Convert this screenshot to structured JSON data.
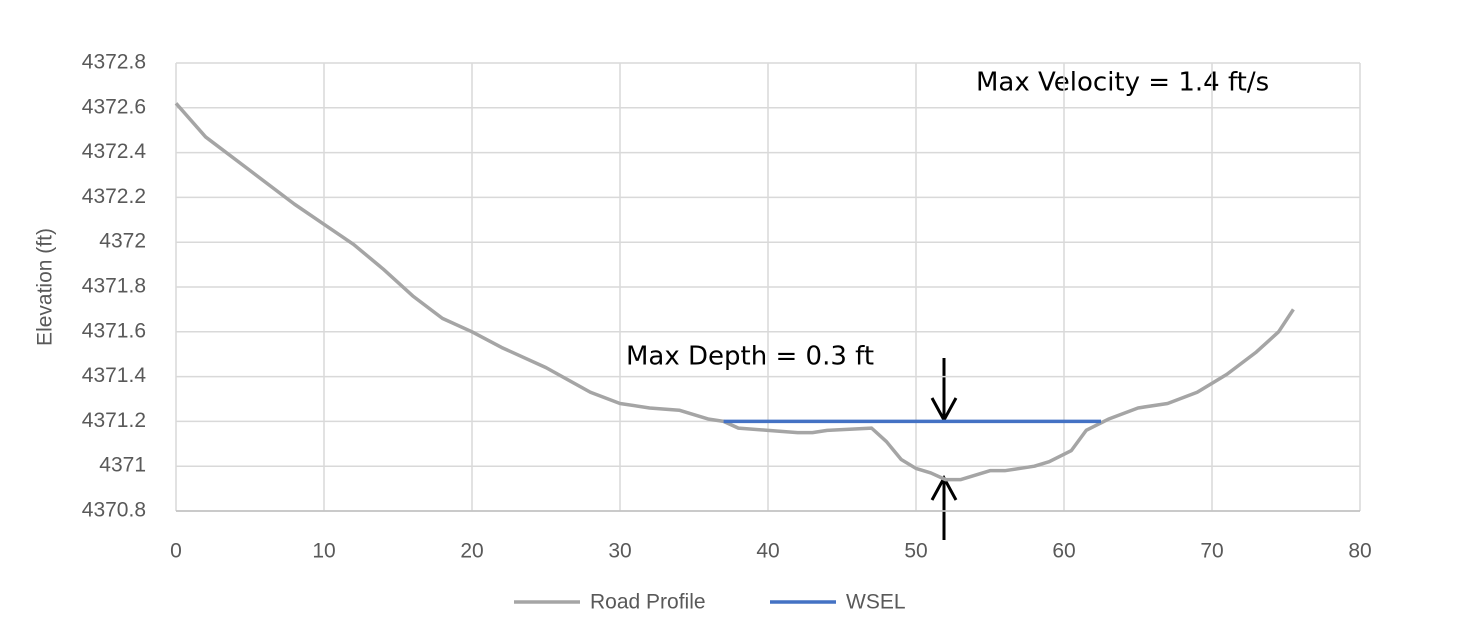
{
  "chart_data": {
    "type": "line",
    "y_label": "Elevation (ft)",
    "annotations": [
      "Max Velocity = 1.4 ft/s",
      "Max Depth = 0.3 ft"
    ],
    "xlim": [
      0,
      80
    ],
    "xticks": [
      0,
      10,
      20,
      30,
      40,
      50,
      60,
      70,
      80
    ],
    "ylim": [
      4370.8,
      4372.8
    ],
    "yticks": [
      4370.8,
      4371,
      4371.2,
      4371.4,
      4371.6,
      4371.8,
      4372,
      4372.2,
      4372.4,
      4372.6,
      4372.8
    ],
    "grid": true,
    "legend": "bottom",
    "series": [
      {
        "name": "Road Profile",
        "color": "#a5a5a5",
        "x": [
          0,
          2,
          5,
          8,
          10,
          12,
          14,
          16,
          18,
          20,
          22,
          25,
          28,
          30,
          32,
          34,
          36,
          37,
          38,
          40,
          42,
          43,
          44,
          47,
          48,
          49,
          50,
          51,
          52,
          53,
          55,
          56,
          58,
          59,
          60.5,
          61.5,
          63,
          65,
          67,
          69,
          71,
          73,
          74.5,
          75.5
        ],
        "values": [
          4372.62,
          4372.47,
          4372.32,
          4372.17,
          4372.08,
          4371.99,
          4371.88,
          4371.76,
          4371.66,
          4371.6,
          4371.53,
          4371.44,
          4371.33,
          4371.28,
          4371.26,
          4371.25,
          4371.21,
          4371.2,
          4371.17,
          4371.16,
          4371.15,
          4371.15,
          4371.16,
          4371.17,
          4371.11,
          4371.03,
          4370.99,
          4370.97,
          4370.94,
          4370.94,
          4370.98,
          4370.98,
          4371.0,
          4371.02,
          4371.07,
          4371.16,
          4371.21,
          4371.26,
          4371.28,
          4371.33,
          4371.41,
          4371.51,
          4371.6,
          4371.7
        ]
      },
      {
        "name": "WSEL",
        "color": "#4472c4",
        "x": [
          37,
          62.5
        ],
        "values": [
          4371.2,
          4371.2
        ]
      }
    ]
  }
}
